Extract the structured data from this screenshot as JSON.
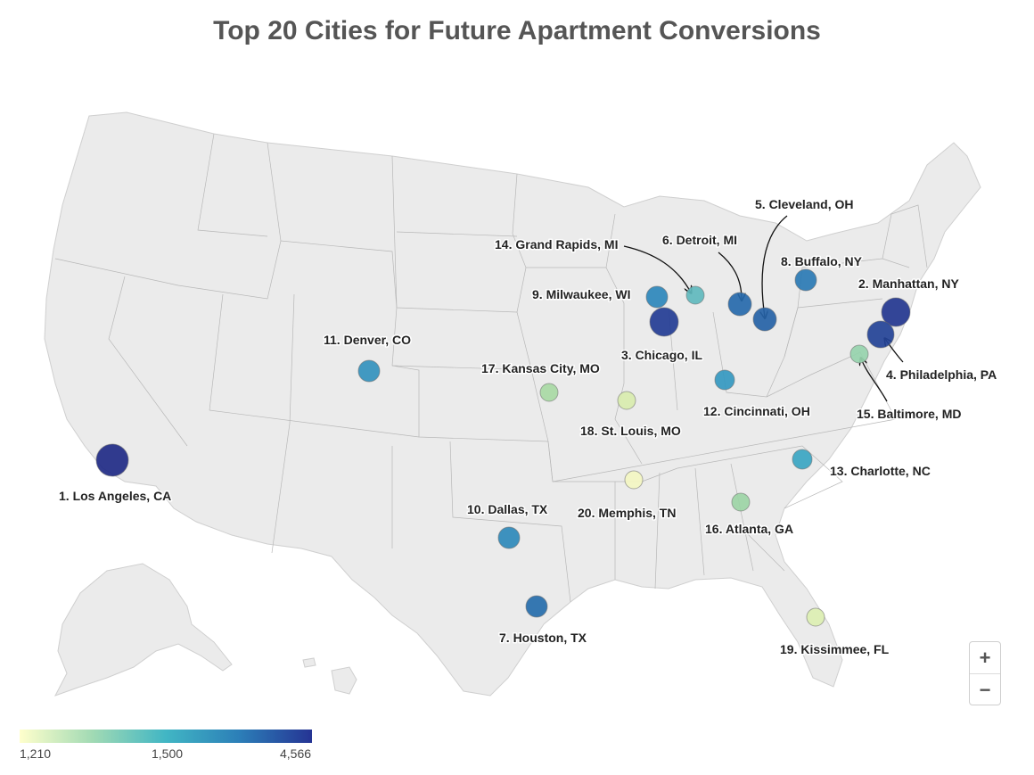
{
  "title": "Top 20 Cities for Future Apartment Conversions",
  "legend": {
    "min_label": "1,210",
    "mid_label": "1,500",
    "max_label": "4,566",
    "colors": [
      "#ffffcc",
      "#a1dab4",
      "#41b6c4",
      "#2c7fb8",
      "#253494"
    ]
  },
  "zoom": {
    "in_label": "+",
    "out_label": "−"
  },
  "cities": [
    {
      "rank": 1,
      "label": "1. Los Angeles, CA",
      "value": 4566,
      "color": "#1f2a85"
    },
    {
      "rank": 2,
      "label": "2. Manhattan, NY",
      "value": 4100,
      "color": "#23368f"
    },
    {
      "rank": 3,
      "label": "3. Chicago, IL",
      "value": 3800,
      "color": "#233c94"
    },
    {
      "rank": 4,
      "label": "4. Philadelphia, PA",
      "value": 3400,
      "color": "#234296"
    },
    {
      "rank": 5,
      "label": "5. Cleveland, OH",
      "value": 2400,
      "color": "#2562a6"
    },
    {
      "rank": 6,
      "label": "6. Detroit, MI",
      "value": 2200,
      "color": "#2669ab"
    },
    {
      "rank": 7,
      "label": "7. Houston, TX",
      "value": 2100,
      "color": "#256dab"
    },
    {
      "rank": 8,
      "label": "8. Buffalo, NY",
      "value": 1950,
      "color": "#2a7ab4"
    },
    {
      "rank": 9,
      "label": "9. Milwaukee, WI",
      "value": 1850,
      "color": "#2d87bb"
    },
    {
      "rank": 10,
      "label": "10. Dallas, TX",
      "value": 1800,
      "color": "#2e89ba"
    },
    {
      "rank": 11,
      "label": "11. Denver, CO",
      "value": 1750,
      "color": "#3391bd"
    },
    {
      "rank": 12,
      "label": "12. Cincinnati, OH",
      "value": 1700,
      "color": "#3498c0"
    },
    {
      "rank": 13,
      "label": "13. Charlotte, NC",
      "value": 1650,
      "color": "#39a5c2"
    },
    {
      "rank": 14,
      "label": "14. Grand Rapids, MI",
      "value": 1550,
      "color": "#5fb8bd"
    },
    {
      "rank": 15,
      "label": "15. Baltimore, MD",
      "value": 1480,
      "color": "#96d3ad"
    },
    {
      "rank": 16,
      "label": "16. Atlanta, GA",
      "value": 1450,
      "color": "#9cd4a5"
    },
    {
      "rank": 17,
      "label": "17. Kansas City, MO",
      "value": 1420,
      "color": "#a8d9a4"
    },
    {
      "rank": 18,
      "label": "18. St. Louis, MO",
      "value": 1320,
      "color": "#d8ecae"
    },
    {
      "rank": 19,
      "label": "19. Kissimmee, FL",
      "value": 1300,
      "color": "#dcefb2"
    },
    {
      "rank": 20,
      "label": "20. Memphis, TN",
      "value": 1210,
      "color": "#f3f6c2"
    }
  ]
}
